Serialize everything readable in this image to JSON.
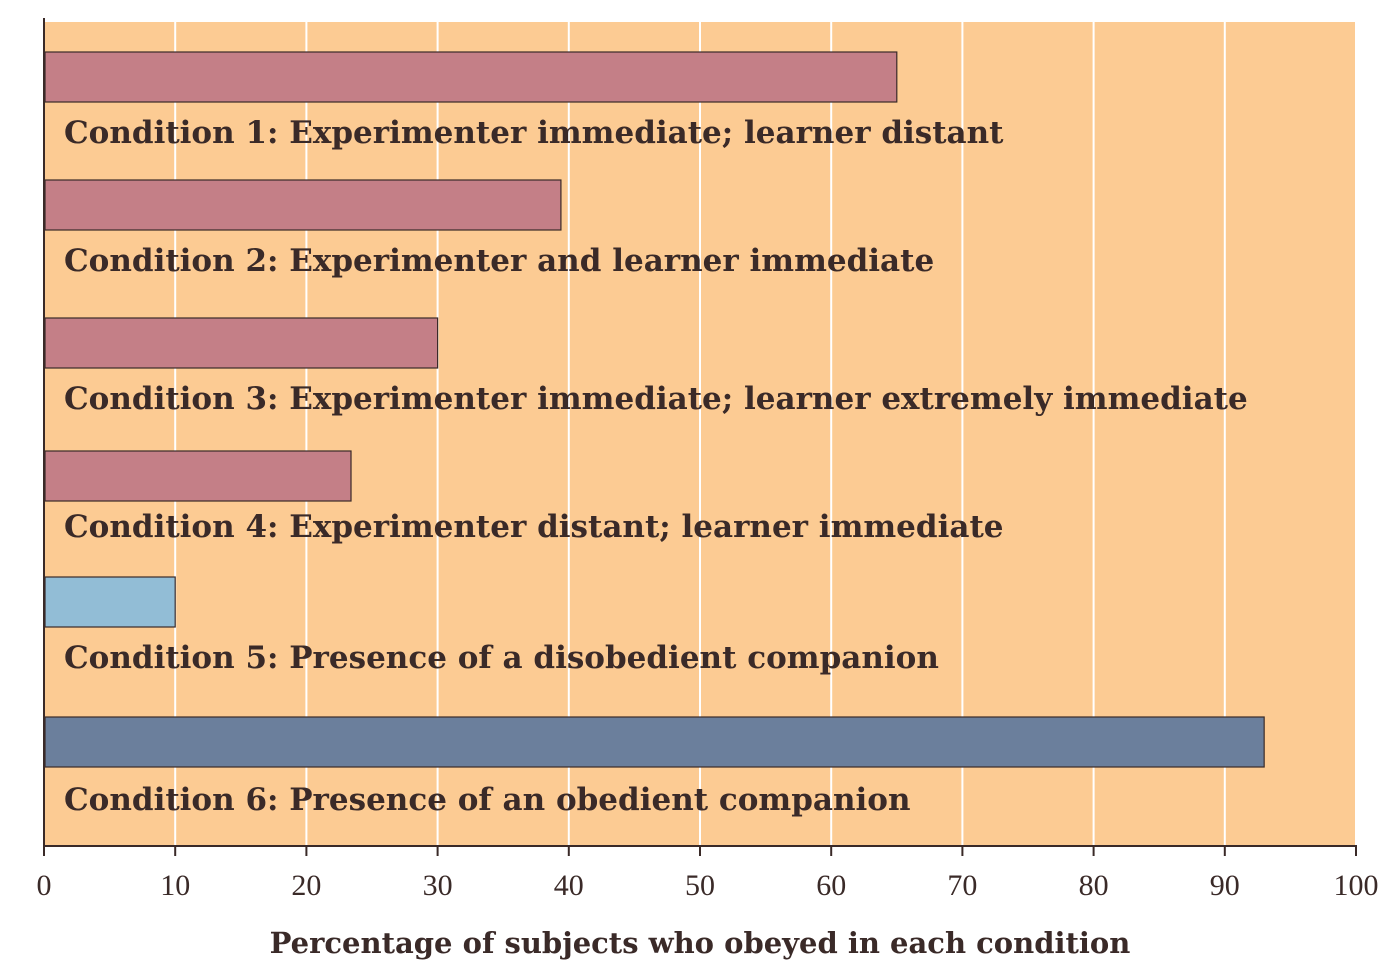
{
  "chart_data": {
    "type": "bar",
    "orientation": "horizontal",
    "title": "",
    "xlabel": "Percentage of subjects who obeyed in each condition",
    "ylabel": "",
    "xlim": [
      0,
      100
    ],
    "xticks": [
      0,
      10,
      20,
      30,
      40,
      50,
      60,
      70,
      80,
      90,
      100
    ],
    "grid": "vertical",
    "background_color": "#fccb93",
    "categories": [
      "Condition 1: Experimenter immediate; learner distant",
      "Condition 2: Experimenter and learner immediate",
      "Condition 3: Experimenter immediate; learner extremely immediate",
      "Condition 4: Experimenter distant; learner immediate",
      "Condition 5: Presence of a disobedient companion",
      "Condition 6: Presence of an obedient companion"
    ],
    "values": [
      65,
      39.4,
      30,
      23.4,
      10,
      93
    ],
    "colors": [
      "#c47f87",
      "#c47f87",
      "#c47f87",
      "#c47f87",
      "#92bdd6",
      "#6b7f9c"
    ]
  }
}
